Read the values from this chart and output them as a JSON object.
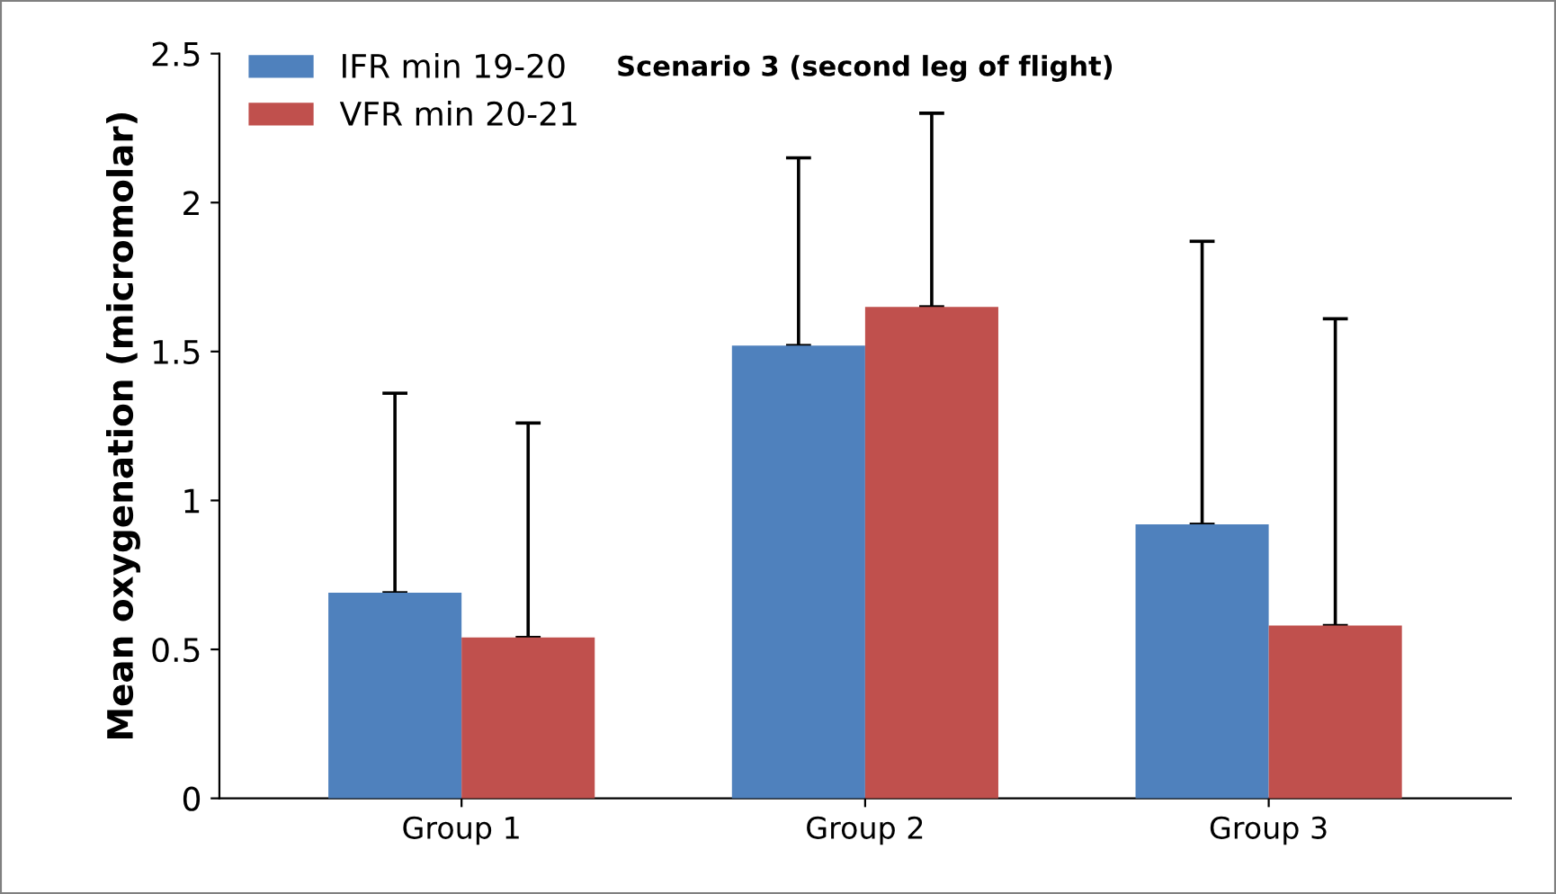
{
  "chart_data": {
    "type": "bar",
    "title": "Scenario 3 (second leg of flight)",
    "ylabel": "Mean oxygenation (micromolar)",
    "categories": [
      "Group 1",
      "Group 2",
      "Group 3"
    ],
    "series": [
      {
        "name": "IFR min 19-20",
        "color": "#4f81bd",
        "values": [
          0.69,
          1.52,
          0.92
        ],
        "errors": [
          [
            0.69,
            1.36
          ],
          [
            1.52,
            2.15
          ],
          [
            0.92,
            1.87
          ]
        ]
      },
      {
        "name": "VFR min 20-21",
        "color": "#c0504d",
        "values": [
          0.54,
          1.65,
          0.58
        ],
        "errors": [
          [
            0.54,
            1.26
          ],
          [
            1.65,
            2.3
          ],
          [
            0.58,
            1.61
          ]
        ]
      }
    ],
    "ylim": [
      0,
      2.5
    ],
    "yticks": [
      0,
      0.5,
      1,
      1.5,
      2,
      2.5
    ],
    "grid": false,
    "legend": "top left"
  }
}
